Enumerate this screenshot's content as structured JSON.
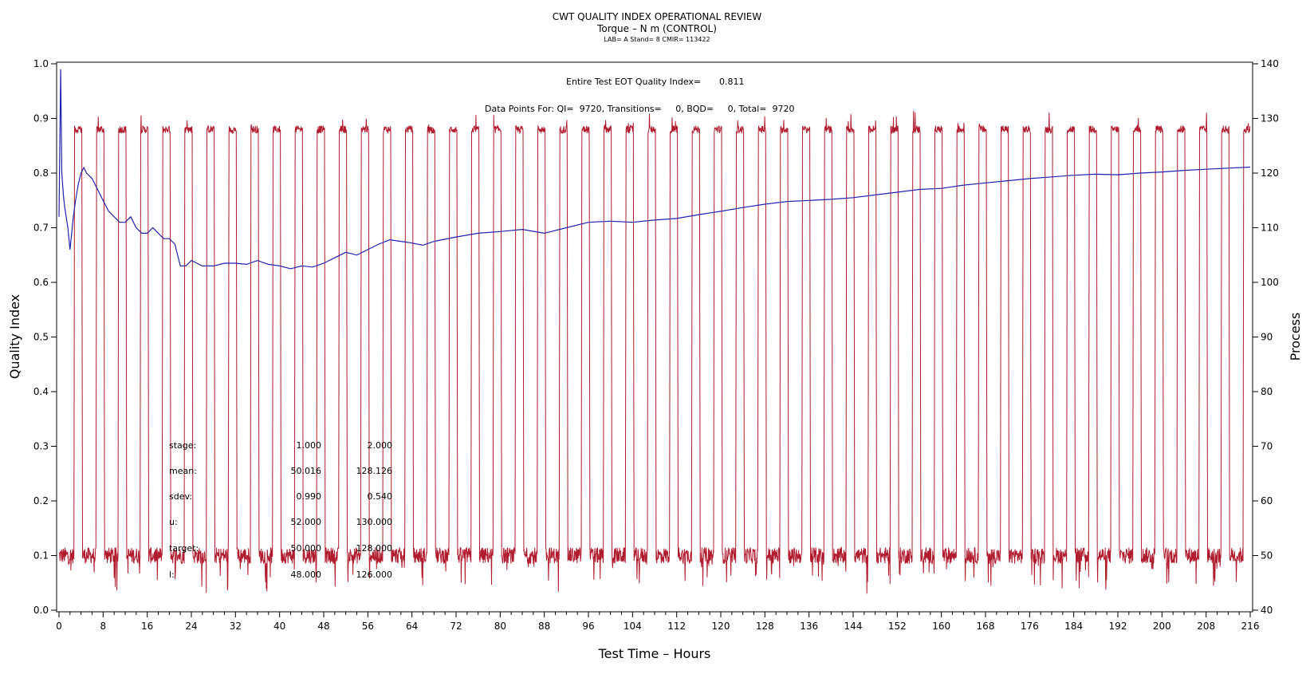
{
  "chart_data": {
    "type": "line",
    "title": "CWT QUALITY INDEX OPERATIONAL REVIEW",
    "subtitle": "Torque – N m (CONTROL)",
    "subtitle2": "LAB= A Stand= 8 CMIR= 113422",
    "xlabel": "Test Time – Hours",
    "ylabel": "Quality Index",
    "y2label": "Process",
    "xlim": [
      0,
      216
    ],
    "ylim": [
      0,
      1.0
    ],
    "y2lim": [
      40,
      140
    ],
    "x_ticks": [
      0,
      8,
      16,
      24,
      32,
      40,
      48,
      56,
      64,
      72,
      80,
      88,
      96,
      104,
      112,
      120,
      128,
      136,
      144,
      152,
      160,
      168,
      176,
      184,
      192,
      200,
      208,
      216
    ],
    "y_ticks": [
      0.0,
      0.1,
      0.2,
      0.3,
      0.4,
      0.5,
      0.6,
      0.7,
      0.8,
      0.9,
      1.0
    ],
    "y2_ticks": [
      40,
      50,
      60,
      70,
      80,
      90,
      100,
      110,
      120,
      130,
      140
    ],
    "y_tick_labels": [
      "0.0",
      "0.1",
      "0.2",
      "0.3",
      "0.4",
      "0.5",
      "0.6",
      "0.7",
      "0.8",
      "0.9",
      "1.0"
    ],
    "annotations": {
      "eot_label": "Entire Test EOT Quality Index=",
      "eot_value": "0.811",
      "points_text": "Data Points For: QI=  9720, Transitions=     0, BQD=     0, Total=  9720"
    },
    "stats_table": [
      {
        "label": "stage:",
        "v1": "1.000",
        "v2": "2.000"
      },
      {
        "label": "mean:",
        "v1": "50.016",
        "v2": "128.126"
      },
      {
        "label": "sdev:",
        "v1": "0.990",
        "v2": "0.540"
      },
      {
        "label": "u:",
        "v1": "52.000",
        "v2": "130.000"
      },
      {
        "label": "target:",
        "v1": "50.000",
        "v2": "128.000"
      },
      {
        "label": "l:",
        "v1": "48.000",
        "v2": "126.000"
      }
    ],
    "series": [
      {
        "axis": "left",
        "color": "#2020b0",
        "x": [
          0,
          0.3,
          0.5,
          0.8,
          1.0,
          1.3,
          1.6,
          2.0,
          2.3,
          2.6,
          3.0,
          3.5,
          4.0,
          4.5,
          5.0,
          6.0,
          7.0,
          8.0,
          9.0,
          10,
          11,
          12,
          13,
          14,
          15,
          16,
          17,
          18,
          19,
          20,
          21,
          22,
          23,
          24,
          26,
          28,
          30,
          32,
          34,
          36,
          38,
          40,
          42,
          44,
          46,
          48,
          50,
          52,
          54,
          56,
          58,
          60,
          62,
          64,
          66,
          68,
          72,
          76,
          80,
          84,
          88,
          92,
          96,
          100,
          104,
          108,
          112,
          116,
          120,
          124,
          128,
          132,
          136,
          140,
          144,
          148,
          152,
          156,
          160,
          164,
          168,
          172,
          176,
          180,
          184,
          188,
          192,
          196,
          200,
          204,
          208,
          212,
          216
        ],
        "values": [
          0.72,
          0.99,
          0.8,
          0.76,
          0.74,
          0.72,
          0.7,
          0.66,
          0.69,
          0.72,
          0.75,
          0.78,
          0.8,
          0.81,
          0.8,
          0.79,
          0.77,
          0.75,
          0.73,
          0.72,
          0.71,
          0.71,
          0.72,
          0.7,
          0.69,
          0.69,
          0.7,
          0.69,
          0.68,
          0.68,
          0.67,
          0.63,
          0.63,
          0.64,
          0.63,
          0.63,
          0.635,
          0.635,
          0.633,
          0.64,
          0.633,
          0.63,
          0.625,
          0.63,
          0.628,
          0.635,
          0.645,
          0.655,
          0.65,
          0.66,
          0.67,
          0.678,
          0.675,
          0.672,
          0.668,
          0.675,
          0.683,
          0.69,
          0.693,
          0.697,
          0.69,
          0.7,
          0.71,
          0.712,
          0.71,
          0.714,
          0.717,
          0.724,
          0.73,
          0.737,
          0.743,
          0.748,
          0.75,
          0.752,
          0.755,
          0.76,
          0.765,
          0.77,
          0.772,
          0.778,
          0.782,
          0.786,
          0.79,
          0.793,
          0.796,
          0.798,
          0.797,
          0.8,
          0.802,
          0.805,
          0.807,
          0.809,
          0.811
        ]
      },
      {
        "axis": "right",
        "color": "#b01c2e",
        "cycle_hours": 4.0,
        "cycle_start": 2.7,
        "high_duration": 1.45,
        "low_level": 50,
        "high_level": 128,
        "first_low_hours": [
          0,
          2.7
        ]
      }
    ]
  }
}
